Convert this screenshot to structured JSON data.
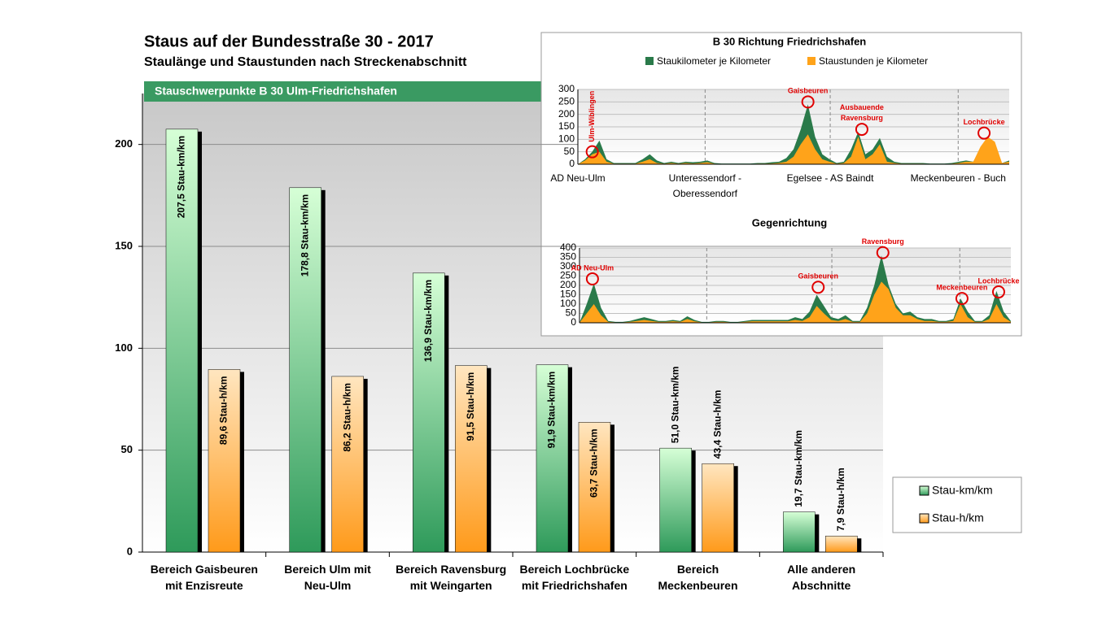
{
  "chart_data": [
    {
      "type": "bar",
      "title": "Staus auf der Bundesstraße 30 - 2017",
      "subtitle": "Staulänge und Staustunden nach Streckenabschnitt",
      "banner": "Stauschwerpunkte B 30 Ulm-Friedrichshafen",
      "categories": [
        "Bereich Gaisbeuren\nmit Enzisreute",
        "Bereich Ulm mit\nNeu-Ulm",
        "Bereich Ravensburg\nmit Weingarten",
        "Bereich Lochbrücke\nmit Friedrichshafen",
        "Bereich\nMeckenbeuren",
        "Alle anderen\nAbschnitte"
      ],
      "series": [
        {
          "name": "Stau-km/km",
          "color": "#2e9a5a",
          "values": [
            207.5,
            178.8,
            136.9,
            91.9,
            51.0,
            19.7
          ],
          "value_labels": [
            "207,5 Stau-km/km",
            "178,8 Stau-km/km",
            "136,9 Stau-km/km",
            "91,9 Stau-km/km",
            "51,0 Stau-km/km",
            "19,7 Stau-km/km"
          ]
        },
        {
          "name": "Stau-h/km",
          "color": "#ff9a1a",
          "values": [
            89.6,
            86.2,
            91.5,
            63.7,
            43.4,
            7.9
          ],
          "value_labels": [
            "89,6 Stau-h/km",
            "86,2 Stau-h/km",
            "91,5 Stau-h/km",
            "63,7 Stau-h/km",
            "43,4 Stau-h/km",
            "7,9 Stau-h/km"
          ]
        }
      ],
      "ylim": [
        0,
        225
      ],
      "yticks": [
        0,
        50,
        100,
        150,
        200
      ],
      "grid": true,
      "legend": "right"
    },
    {
      "type": "area",
      "title": "B 30 Richtung Friedrichshafen",
      "x": [
        0,
        1,
        2,
        3,
        4,
        5,
        6,
        7,
        8,
        9,
        10,
        11,
        12,
        13,
        14,
        15,
        16,
        17,
        18,
        19,
        20,
        21,
        22,
        23,
        24,
        25,
        26,
        27,
        28,
        29,
        30,
        31,
        32,
        33,
        34,
        35,
        36,
        37,
        38,
        39,
        40,
        41,
        42,
        43,
        44,
        45,
        46,
        47,
        48,
        49,
        50,
        51,
        52,
        53,
        54,
        55,
        56,
        57,
        58,
        59,
        60
      ],
      "series": [
        {
          "name": "Staukilometer je Kilometer",
          "color": "#2a7a4a",
          "values": [
            0,
            20,
            50,
            95,
            20,
            5,
            5,
            5,
            5,
            20,
            40,
            15,
            5,
            10,
            5,
            10,
            8,
            10,
            15,
            5,
            3,
            3,
            3,
            3,
            3,
            5,
            5,
            8,
            10,
            25,
            60,
            140,
            240,
            110,
            40,
            20,
            5,
            10,
            60,
            130,
            40,
            60,
            105,
            30,
            10,
            5,
            5,
            5,
            5,
            3,
            3,
            3,
            5,
            10,
            15,
            10,
            60,
            110,
            70,
            5,
            15
          ]
        },
        {
          "name": "Staustunden je Kilometer",
          "color": "#ffa31a",
          "values": [
            0,
            15,
            40,
            50,
            10,
            2,
            2,
            2,
            2,
            10,
            20,
            5,
            2,
            5,
            2,
            5,
            3,
            5,
            8,
            2,
            1,
            1,
            1,
            1,
            1,
            2,
            2,
            3,
            5,
            10,
            30,
            80,
            120,
            60,
            20,
            10,
            2,
            5,
            30,
            110,
            20,
            40,
            80,
            10,
            5,
            2,
            2,
            2,
            2,
            1,
            1,
            1,
            2,
            5,
            10,
            10,
            70,
            110,
            90,
            5,
            10
          ]
        }
      ],
      "xlim": [
        0,
        60
      ],
      "xticks": [
        {
          "value": 0,
          "label": "AD Neu-Ulm"
        },
        {
          "value": 17.7,
          "label": "Unteressendorf -\nOberessendorf"
        },
        {
          "value": 35.1,
          "label": "Egelsee - AS Baindt"
        },
        {
          "value": 52.9,
          "label": "Meckenbeuren - Buch"
        }
      ],
      "ylim": [
        0,
        300
      ],
      "yticks": [
        0,
        50,
        100,
        150,
        200,
        250,
        300
      ],
      "annotations": [
        {
          "text": "Ulm-Wiblingen",
          "x": 2,
          "y": 50,
          "vertical": true
        },
        {
          "text": "Gaisbeuren",
          "x": 32,
          "y": 250
        },
        {
          "text": "Ausbauende\nRavensburg",
          "x": 39.5,
          "y": 140
        },
        {
          "text": "Lochbrücke",
          "x": 56.5,
          "y": 125
        }
      ]
    },
    {
      "type": "area",
      "title": "Gegenrichtung",
      "x": [
        0,
        1,
        2,
        3,
        4,
        5,
        6,
        7,
        8,
        9,
        10,
        11,
        12,
        13,
        14,
        15,
        16,
        17,
        18,
        19,
        20,
        21,
        22,
        23,
        24,
        25,
        26,
        27,
        28,
        29,
        30,
        31,
        32,
        33,
        34,
        35,
        36,
        37,
        38,
        39,
        40,
        41,
        42,
        43,
        44,
        45,
        46,
        47,
        48,
        49,
        50,
        51,
        52,
        53,
        54,
        55,
        56,
        57,
        58,
        59,
        60
      ],
      "series": [
        {
          "color": "#2a7a4a",
          "values": [
            0,
            100,
            210,
            80,
            10,
            5,
            5,
            10,
            20,
            30,
            20,
            10,
            10,
            15,
            10,
            35,
            15,
            5,
            5,
            10,
            10,
            5,
            5,
            10,
            15,
            15,
            15,
            15,
            15,
            15,
            30,
            20,
            60,
            150,
            90,
            30,
            20,
            40,
            10,
            10,
            80,
            200,
            360,
            200,
            100,
            50,
            60,
            30,
            20,
            20,
            10,
            10,
            20,
            130,
            60,
            10,
            10,
            40,
            170,
            60,
            10
          ]
        },
        {
          "color": "#ffa31a",
          "values": [
            0,
            50,
            100,
            40,
            5,
            2,
            2,
            5,
            10,
            15,
            10,
            5,
            5,
            8,
            5,
            20,
            8,
            2,
            2,
            5,
            5,
            2,
            2,
            5,
            8,
            8,
            8,
            8,
            8,
            8,
            15,
            10,
            30,
            90,
            50,
            15,
            10,
            20,
            5,
            5,
            50,
            150,
            220,
            180,
            80,
            40,
            40,
            20,
            10,
            10,
            5,
            5,
            10,
            100,
            30,
            5,
            5,
            20,
            100,
            30,
            5
          ]
        }
      ],
      "xlim": [
        0,
        60
      ],
      "ylim": [
        0,
        400
      ],
      "yticks": [
        0,
        50,
        100,
        150,
        200,
        250,
        300,
        350,
        400
      ],
      "annotations": [
        {
          "text": "AD Neu-Ulm",
          "x": 1.8,
          "y": 235
        },
        {
          "text": "Gaisbeuren",
          "x": 33.2,
          "y": 190
        },
        {
          "text": "Ravensburg",
          "x": 42.2,
          "y": 375
        },
        {
          "text": "Meckenbeuren",
          "x": 53.2,
          "y": 130
        },
        {
          "text": "Lochbrücke",
          "x": 58.3,
          "y": 165
        }
      ]
    }
  ]
}
